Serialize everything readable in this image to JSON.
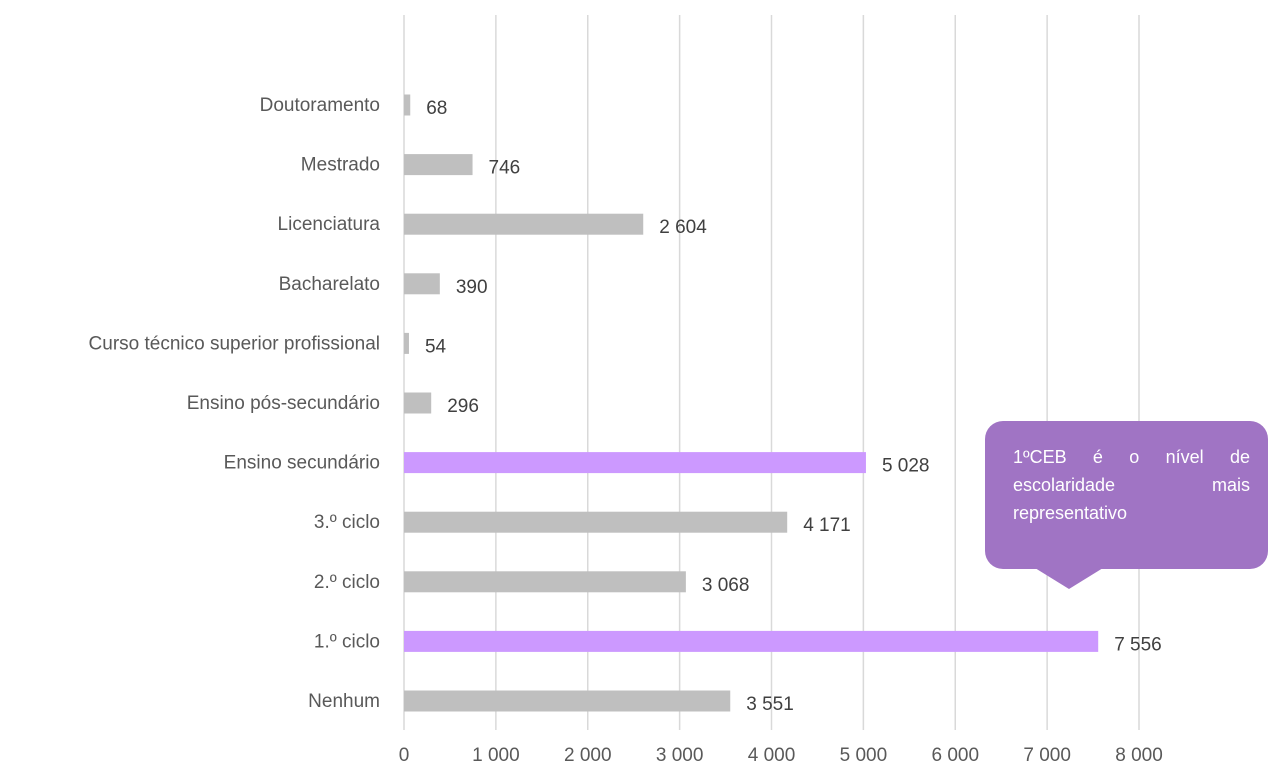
{
  "chart_data": {
    "type": "bar",
    "orientation": "horizontal",
    "categories": [
      "Doutoramento",
      "Mestrado",
      "Licenciatura",
      "Bacharelato",
      "Curso técnico superior profissional",
      "Ensino pós-secundário",
      "Ensino secundário",
      "3.º ciclo",
      "2.º ciclo",
      "1.º ciclo",
      "Nenhum"
    ],
    "values": [
      68,
      746,
      2604,
      390,
      54,
      296,
      5028,
      4171,
      3068,
      7556,
      3551
    ],
    "value_labels": [
      "68",
      "746",
      "2 604",
      "390",
      "54",
      "296",
      "5 028",
      "4 171",
      "3 068",
      "7 556",
      "3 551"
    ],
    "highlighted": [
      "Ensino secundário",
      "1.º ciclo"
    ],
    "xlim": [
      0,
      8000
    ],
    "xticks": [
      0,
      1000,
      2000,
      3000,
      4000,
      5000,
      6000,
      7000,
      8000
    ],
    "xtick_labels": [
      "0",
      "1 000",
      "2 000",
      "3 000",
      "4 000",
      "5 000",
      "6 000",
      "7 000",
      "8 000"
    ],
    "grid": true,
    "legend": "none",
    "title": "",
    "xlabel": "",
    "ylabel": "",
    "colors": {
      "bar": "#bfbfbf",
      "highlight": "#cc99ff",
      "callout": "#a074c4"
    }
  },
  "callout": {
    "text": "1ºCEB é o nível de escolaridade mais representativo"
  }
}
